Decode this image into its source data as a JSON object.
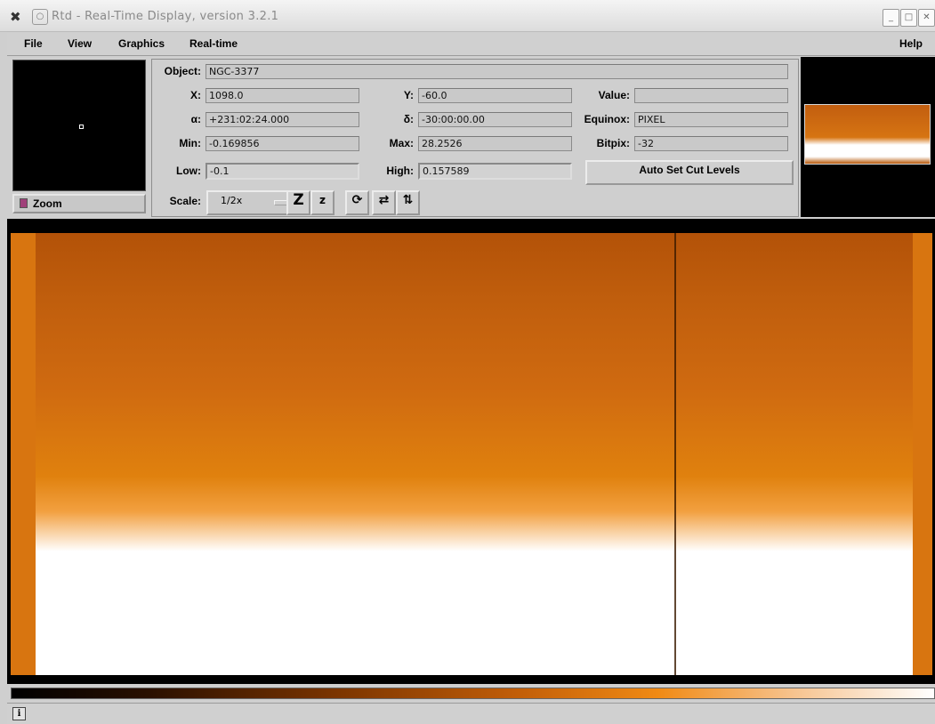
{
  "window": {
    "title": "Rtd - Real-Time Display, version 3.2.1"
  },
  "menu": {
    "file": "File",
    "view": "View",
    "graphics": "Graphics",
    "realtime": "Real-time",
    "help": "Help"
  },
  "zoom": {
    "label": "Zoom"
  },
  "info": {
    "object_label": "Object:",
    "object_value": "NGC-3377",
    "x_label": "X:",
    "x_value": "1098.0",
    "y_label": "Y:",
    "y_value": "-60.0",
    "value_label": "Value:",
    "value_value": "",
    "alpha_label": "α:",
    "alpha_value": "+231:02:24.000",
    "delta_label": "δ:",
    "delta_value": "-30:00:00.00",
    "equinox_label": "Equinox:",
    "equinox_value": "PIXEL",
    "min_label": "Min:",
    "min_value": "-0.169856",
    "max_label": "Max:",
    "max_value": "28.2526",
    "bitpix_label": "Bitpix:",
    "bitpix_value": "-32",
    "low_label": "Low:",
    "low_value": "-0.1",
    "high_label": "High:",
    "high_value": "0.157589",
    "autocut_label": "Auto Set Cut Levels",
    "scale_label": "Scale:",
    "scale_value": "1/2x"
  },
  "toolbar": {
    "zoom_in": "Z",
    "zoom_out": "z",
    "rotate": "⟳",
    "flip_x": "⇄",
    "flip_y": "⇅"
  },
  "status": {
    "icon": "i"
  },
  "colors": {
    "image_accent": "#de7a12",
    "zoom_indicator": "#a0407a"
  }
}
